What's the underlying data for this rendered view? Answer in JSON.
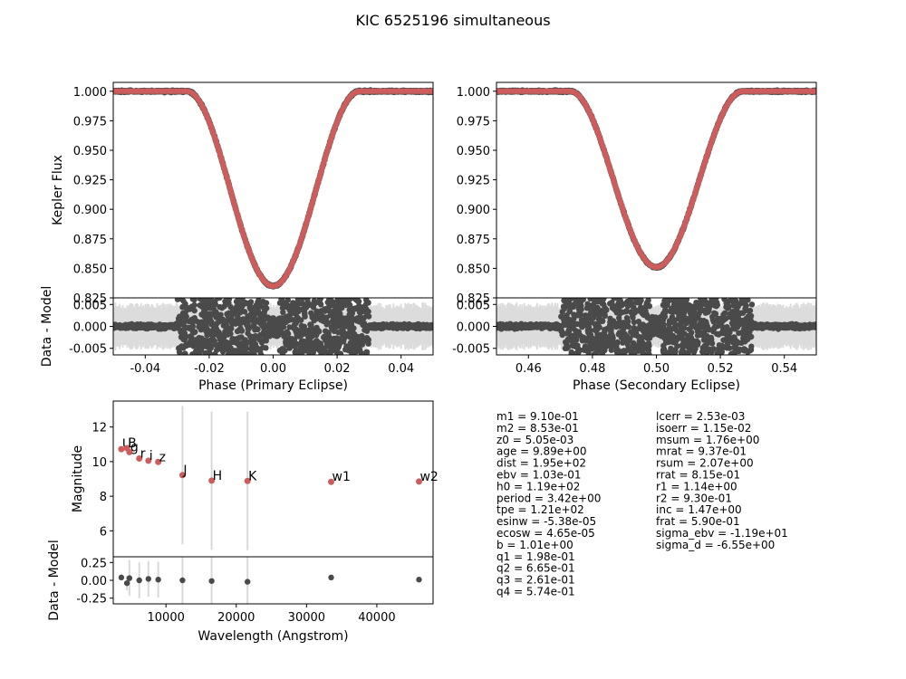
{
  "title": "KIC 6525196 simultaneous",
  "colors": {
    "data": "#4a4a4a",
    "model": "#cd5c5c",
    "band": "#dcdcdc",
    "errbar": "#d9d9d9"
  },
  "chart_data": [
    {
      "id": "primary",
      "type": "scatter",
      "ylabel": "Kepler Flux",
      "xlim": [
        -0.05,
        0.05
      ],
      "ylim": [
        0.825,
        1.0075
      ],
      "yticks": [
        "1.000",
        "0.975",
        "0.950",
        "0.925",
        "0.900",
        "0.875",
        "0.850",
        "0.825"
      ],
      "eclipse": {
        "center": 0.0,
        "half_width": 0.027,
        "min_flux": 0.835
      },
      "residuals": {
        "ylabel": "Data - Model",
        "xlabel": "Phase (Primary Eclipse)",
        "ylim": [
          -0.0065,
          0.0065
        ],
        "yticks": [
          "0.005",
          "0.000",
          "-0.005"
        ],
        "xticks": [
          "-0.04",
          "-0.02",
          "0.00",
          "0.02",
          "0.04"
        ],
        "scatter_out": 0.0015,
        "scatter_in": 0.0065
      }
    },
    {
      "id": "secondary",
      "type": "scatter",
      "ylabel": "",
      "xlim": [
        0.45,
        0.55
      ],
      "ylim": [
        0.825,
        1.0075
      ],
      "yticks": [
        "1.000",
        "0.975",
        "0.950",
        "0.925",
        "0.900",
        "0.875",
        "0.850",
        "0.825"
      ],
      "eclipse": {
        "center": 0.5,
        "half_width": 0.027,
        "min_flux": 0.851
      },
      "residuals": {
        "ylabel": "",
        "xlabel": "Phase (Secondary Eclipse)",
        "ylim": [
          -0.0065,
          0.0065
        ],
        "yticks": [
          "0.005",
          "0.000",
          "-0.005"
        ],
        "xticks": [
          "0.46",
          "0.48",
          "0.50",
          "0.52",
          "0.54"
        ],
        "scatter_out": 0.0015,
        "scatter_in": 0.0065
      }
    },
    {
      "id": "sed",
      "type": "scatter",
      "ylabel": "Magnitude",
      "xlim": [
        2500,
        48000
      ],
      "ylim": [
        4.5,
        13.5
      ],
      "yticks": [
        "12",
        "10",
        "8",
        "6"
      ],
      "points": [
        {
          "band": "U",
          "x": 3650,
          "y": 10.72,
          "err": 0.0
        },
        {
          "band": "B",
          "x": 4450,
          "y": 10.78,
          "err": 0.0
        },
        {
          "band": "g",
          "x": 4800,
          "y": 10.55,
          "err": 0.0
        },
        {
          "band": "r",
          "x": 6200,
          "y": 10.18,
          "err": 0.0
        },
        {
          "band": "i",
          "x": 7500,
          "y": 10.05,
          "err": 0.0
        },
        {
          "band": "z",
          "x": 8900,
          "y": 9.98,
          "err": 0.0
        },
        {
          "band": "J",
          "x": 12350,
          "y": 9.22,
          "err": 4.0
        },
        {
          "band": "H",
          "x": 16500,
          "y": 8.9,
          "err": 4.0
        },
        {
          "band": "K",
          "x": 21600,
          "y": 8.88,
          "err": 4.0
        },
        {
          "band": "w1",
          "x": 33500,
          "y": 8.83,
          "err": 0.0
        },
        {
          "band": "w2",
          "x": 46000,
          "y": 8.85,
          "err": 0.0
        }
      ],
      "residuals": {
        "ylabel": "Data - Model",
        "xlabel": "Wavelength (Angstrom)",
        "ylim": [
          -0.33,
          0.33
        ],
        "yticks": [
          "0.25",
          "0.00",
          "-0.25"
        ],
        "xticks": [
          "10000",
          "20000",
          "30000",
          "40000"
        ],
        "points": [
          {
            "x": 3650,
            "y": 0.04,
            "err": 0.0
          },
          {
            "x": 4450,
            "y": -0.04,
            "err": 0.1
          },
          {
            "x": 4800,
            "y": 0.03,
            "err": 0.25
          },
          {
            "x": 6200,
            "y": 0.0,
            "err": 0.25
          },
          {
            "x": 7500,
            "y": 0.02,
            "err": 0.25
          },
          {
            "x": 8900,
            "y": 0.01,
            "err": 0.25
          },
          {
            "x": 12350,
            "y": 0.0,
            "err": 0.6
          },
          {
            "x": 16500,
            "y": -0.01,
            "err": 0.6
          },
          {
            "x": 21600,
            "y": -0.02,
            "err": 0.6
          },
          {
            "x": 33500,
            "y": 0.04,
            "err": 0.0
          },
          {
            "x": 46000,
            "y": 0.01,
            "err": 0.0
          }
        ]
      }
    }
  ],
  "parameters": {
    "left": [
      "m1 = 9.10e-01",
      "m2 = 8.53e-01",
      "z0 = 5.05e-03",
      "age = 9.89e+00",
      "dist = 1.95e+02",
      "ebv = 1.03e-01",
      "h0 = 1.19e+02",
      "period = 3.42e+00",
      "tpe = 1.21e+02",
      "esinw = -5.38e-05",
      "ecosw = 4.65e-05",
      "b = 1.01e+00",
      "q1 = 1.98e-01",
      "q2 = 6.65e-01",
      "q3 = 2.61e-01",
      "q4 = 5.74e-01"
    ],
    "right": [
      "lcerr = 2.53e-03",
      "isoerr = 1.15e-02",
      "msum = 1.76e+00",
      "mrat = 9.37e-01",
      "rsum = 2.07e+00",
      "rrat = 8.15e-01",
      "r1 = 1.14e+00",
      "r2 = 9.30e-01",
      "inc = 1.47e+00",
      "frat = 5.90e-01",
      "sigma_ebv = -1.19e+01",
      "sigma_d = -6.55e+00"
    ]
  }
}
